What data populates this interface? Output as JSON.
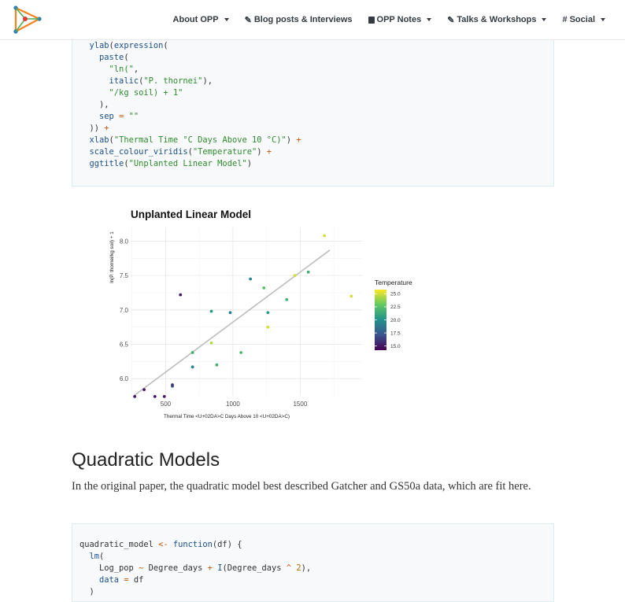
{
  "nav": {
    "items": [
      {
        "label": "About OPP",
        "icon": "",
        "dropdown": true
      },
      {
        "label": "Blog posts & Interviews",
        "icon": "pencil-icon",
        "dropdown": false
      },
      {
        "label": "OPP Notes",
        "icon": "book-icon",
        "dropdown": true
      },
      {
        "label": "Talks & Workshops",
        "icon": "pencil-icon",
        "dropdown": true
      },
      {
        "label": "Social",
        "icon": "hashtag-icon",
        "dropdown": true
      }
    ]
  },
  "code_block_1": {
    "lines": [
      "  ylab(expression(",
      "    paste(",
      "      \"ln(\",",
      "      italic(\"P. thornei\"),",
      "      \"/kg soil) + 1\"",
      "    ),",
      "    sep = \"\"",
      "  )) +",
      "  xlab(\"Thermal Time °C Days Above 10 °C)\") +",
      "  scale_colour_viridis(\"Temperature\") +",
      "  ggtitle(\"Unplanted Linear Model\")"
    ]
  },
  "chart_data": {
    "type": "scatter",
    "title": "Unplanted Linear Model",
    "xlabel": "Thermal Time <U+02DA>C Days Above 10 <U+02DA>C)",
    "ylabel": "ln(P. thornei/kg soil) + 1",
    "xlim": [
      240,
      1960
    ],
    "ylim": [
      5.75,
      8.2
    ],
    "x_ticks": [
      500,
      1000,
      1500
    ],
    "x_tick_labels": [
      "500",
      "1000",
      "1500"
    ],
    "y_ticks": [
      6.0,
      6.5,
      7.0,
      7.5,
      8.0
    ],
    "y_tick_labels": [
      "6.0",
      "6.5",
      "7.0",
      "7.5",
      "8.0"
    ],
    "grid": true,
    "legend_position": "right",
    "legend": {
      "title": "Temperature",
      "labels": [
        "25.0",
        "22.5",
        "20.0",
        "17.5",
        "15.0"
      ],
      "values": [
        25.0,
        22.5,
        20.0,
        17.5,
        15.0
      ],
      "min": 14.2,
      "max": 25.8
    },
    "points": [
      {
        "x": 270,
        "y": 5.74,
        "t": 15.0
      },
      {
        "x": 340,
        "y": 5.84,
        "t": 15.0
      },
      {
        "x": 420,
        "y": 5.74,
        "t": 15.0
      },
      {
        "x": 490,
        "y": 5.74,
        "t": 15.0
      },
      {
        "x": 550,
        "y": 5.89,
        "t": 17.0
      },
      {
        "x": 550,
        "y": 5.91,
        "t": 16.0
      },
      {
        "x": 610,
        "y": 7.22,
        "t": 15.0
      },
      {
        "x": 700,
        "y": 6.17,
        "t": 19.5
      },
      {
        "x": 700,
        "y": 6.38,
        "t": 21.5
      },
      {
        "x": 840,
        "y": 6.98,
        "t": 20.5
      },
      {
        "x": 840,
        "y": 6.52,
        "t": 24.5
      },
      {
        "x": 880,
        "y": 6.2,
        "t": 21.5
      },
      {
        "x": 980,
        "y": 6.96,
        "t": 19.0
      },
      {
        "x": 1060,
        "y": 6.38,
        "t": 22.0
      },
      {
        "x": 1130,
        "y": 7.45,
        "t": 19.5
      },
      {
        "x": 1230,
        "y": 7.32,
        "t": 22.5
      },
      {
        "x": 1260,
        "y": 6.96,
        "t": 20.5
      },
      {
        "x": 1260,
        "y": 6.75,
        "t": 25.0
      },
      {
        "x": 1400,
        "y": 7.15,
        "t": 21.5
      },
      {
        "x": 1460,
        "y": 7.5,
        "t": 25.0
      },
      {
        "x": 1560,
        "y": 7.55,
        "t": 21.5
      },
      {
        "x": 1680,
        "y": 8.08,
        "t": 25.0
      },
      {
        "x": 1880,
        "y": 7.2,
        "t": 25.0
      }
    ],
    "fit_line": {
      "x": [
        270,
        1720
      ],
      "y": [
        5.76,
        7.87
      ],
      "color": "#bdbdbd"
    }
  },
  "section": {
    "title": "Quadratic Models",
    "paragraph": "In the original paper, the quadratic model best described Gatcher and GS50a data, which are fit here."
  },
  "code_block_2": {
    "lines": [
      "quadratic_model <- function(df) {",
      "  lm(",
      "    Log_pop ~ Degree_days + I(Degree_days ^ 2),",
      "    data = df",
      "  )"
    ]
  },
  "colors": {
    "brand_orange": "#f58220",
    "brand_blue": "#2a7ab9",
    "brand_green": "#4caf50",
    "code_bg": "#f8f9fa",
    "code_border": "#d9eef0",
    "fit_line": "#bdbdbd"
  }
}
